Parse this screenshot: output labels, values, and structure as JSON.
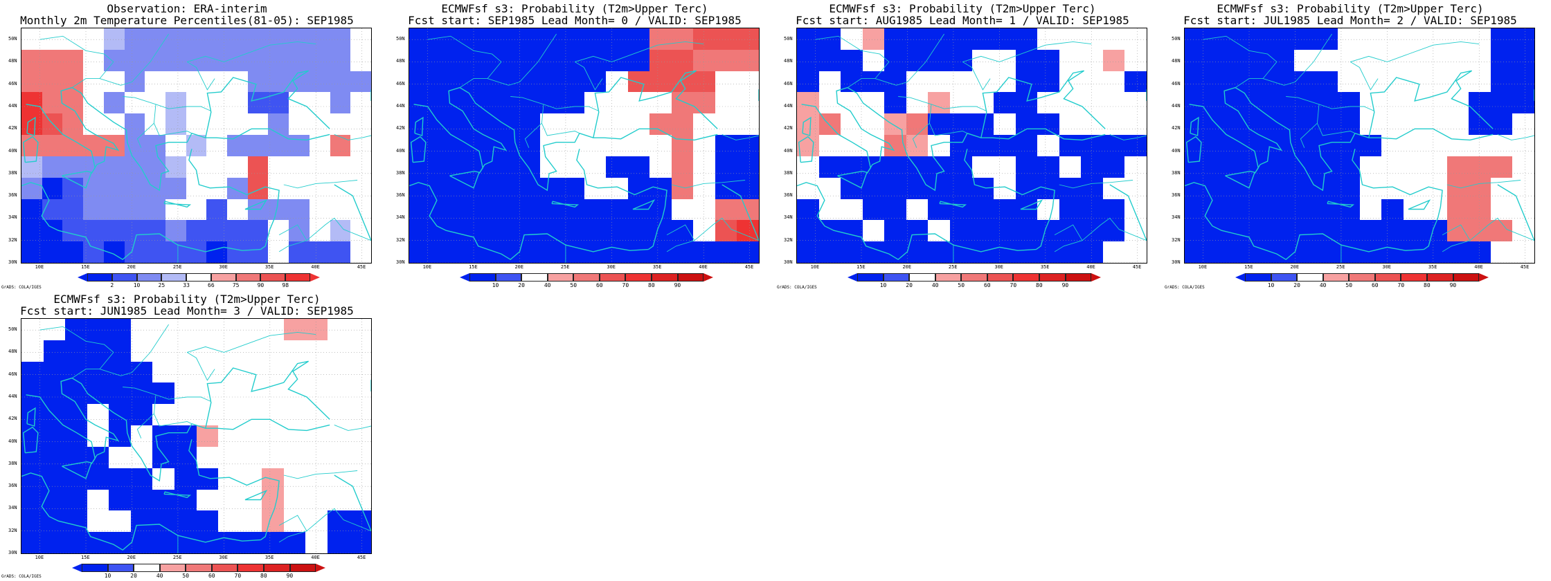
{
  "colors": {
    "blue_dark": "#0022ee",
    "blue_med": "#3f54f2",
    "blue_light": "#7f8bf2",
    "blue_pale": "#b3bbf6",
    "white": "#ffffff",
    "red_pale": "#f7a1a1",
    "red_light": "#f07878",
    "red_med": "#ec5353",
    "red_dark": "#ee3333",
    "coast": "#22cccc"
  },
  "axes": {
    "lat_labels": [
      "50N",
      "48N",
      "46N",
      "44N",
      "42N",
      "40N",
      "38N",
      "36N",
      "34N",
      "32N",
      "30N"
    ],
    "lon_labels": [
      "10E",
      "15E",
      "20E",
      "25E",
      "30E",
      "35E",
      "40E",
      "45E"
    ]
  },
  "credit": "GrADS: COLA/IGES",
  "panels": [
    {
      "id": "obs",
      "title1": "Observation: ERA-interim",
      "title2": "Monthly 2m Temperature Percentiles(81-05): SEP1985",
      "colorbar_ticks": [
        "2",
        "10",
        "25",
        "33",
        "66",
        "75",
        "90",
        "98"
      ],
      "palette": [
        "#0022ee",
        "#3f54f2",
        "#7f8bf2",
        "#b3bbf6",
        "#ffffff",
        "#f7a1a1",
        "#f07878",
        "#ec5353",
        "#ee3333"
      ]
    },
    {
      "id": "lead0",
      "title1": "ECMWFsf s3: Probability (T2m>Upper Terc)",
      "title2": "Fcst start: SEP1985  Lead Month= 0 / VALID: SEP1985",
      "colorbar_ticks": [
        "10",
        "20",
        "40",
        "50",
        "60",
        "70",
        "80",
        "90"
      ],
      "palette": [
        "#0022ee",
        "#3f54f2",
        "#ffffff",
        "#f7a1a1",
        "#f07878",
        "#ec5353",
        "#ee3333",
        "#dd2222",
        "#cc1111"
      ]
    },
    {
      "id": "lead1",
      "title1": "ECMWFsf s3: Probability (T2m>Upper Terc)",
      "title2": "Fcst start: AUG1985  Lead Month= 1 / VALID: SEP1985",
      "colorbar_ticks": [
        "10",
        "20",
        "40",
        "50",
        "60",
        "70",
        "80",
        "90"
      ],
      "palette": [
        "#0022ee",
        "#3f54f2",
        "#ffffff",
        "#f7a1a1",
        "#f07878",
        "#ec5353",
        "#ee3333",
        "#dd2222",
        "#cc1111"
      ]
    },
    {
      "id": "lead2",
      "title1": "ECMWFsf s3: Probability (T2m>Upper Terc)",
      "title2": "Fcst start: JUL1985  Lead Month= 2 / VALID: SEP1985",
      "colorbar_ticks": [
        "10",
        "20",
        "40",
        "50",
        "60",
        "70",
        "80",
        "90"
      ],
      "palette": [
        "#0022ee",
        "#3f54f2",
        "#ffffff",
        "#f7a1a1",
        "#f07878",
        "#ec5353",
        "#ee3333",
        "#dd2222",
        "#cc1111"
      ]
    },
    {
      "id": "lead3",
      "title1": "ECMWFsf s3: Probability (T2m>Upper Terc)",
      "title2": "Fcst start: JUN1985  Lead Month= 3 / VALID: SEP1985",
      "colorbar_ticks": [
        "10",
        "20",
        "40",
        "50",
        "60",
        "70",
        "80",
        "90"
      ],
      "palette": [
        "#0022ee",
        "#3f54f2",
        "#ffffff",
        "#f7a1a1",
        "#f07878",
        "#ec5353",
        "#ee3333",
        "#dd2222",
        "#cc1111"
      ]
    }
  ],
  "grids": {
    "legend": "cell codes: B=blue_dark b=blue_med l=blue_light p=blue_pale .=white r=red_pale R=red_light M=red_med D=red_dark",
    "obs": [
      "....plllllllllll",
      "RRR.llllllllllll",
      "RRR..l.....llllll",
      "DRR.l..p...bb..l",
      "DMR..l.p....l...",
      "RRRRRll.p.llll.R",
      "pllllllp...M....",
      "lBblllll..lM....",
      "Bbbllll..b.lll..",
      "BBbbbbblbbbb.l.p",
      "BBBbBbbbbBbb.bbb"
    ],
    "lead0": [
      "BBBBBBBBBBBRRMMM",
      "BBBBBBBBBBBMMRRR",
      "BBBBBBBBB.MMMM..",
      "BBBBBBBB....RR..",
      "BBBBBB.....RR...",
      "BBBBBB......R.BB",
      "BBBBBB...BB.R.BB",
      "BBBBBBBB..BBR.BB",
      "BBBBBBBBBBBB..RR",
      "BBBBBBBBBBBBB.MD",
      "BBBBBBBBBBBBBBBB"
    ],
    "lead1": [
      "BB.rBBBBBBB.....",
      "BBB.BBBB..BB..r.",
      "B.BBB.....BB...B",
      "r...B.r..BB.....",
      "rR..rRBBB.BB....",
      "r...Rr.BBBB.BBBB",
      ".BBBBBBB..BB.BB.",
      "..BBBBBBB.BBBB..",
      "B..BB.BBBBB.BBB.",
      "BBB.BB.BBBBBBBB.",
      "BBBBBBBBBBBBBB.."
    ],
    "lead2": [
      "BBBBBBB.......BB",
      "BBBBB.........BB",
      "BBBBBBB.......BB",
      "BBBBBBBB.....BBB",
      "BBBBBBBB.....BB.",
      "BBBBBBBBB.......",
      "BBBBBBBB....RRR.",
      "BBBBBBBB....RR..",
      "BBBBBBBB.B..RR..",
      "BBBBBBBBBBBBRRR.",
      "BBBBBBBBBBBBBB.."
    ],
    "lead3": [
      "..BBB.......rr..",
      ".BBBB...........",
      "BBBBBB..........",
      "BBBBBBB.........",
      "BBB.BB..........",
      "BBB.B.BBr.......",
      "BBBB..BB........",
      "BBBBBB.BB..r....",
      "BBB.BBBB...r....",
      "BBB..BBBB..r..BB",
      "BBBBBBBBBBBBB.BB"
    ]
  }
}
